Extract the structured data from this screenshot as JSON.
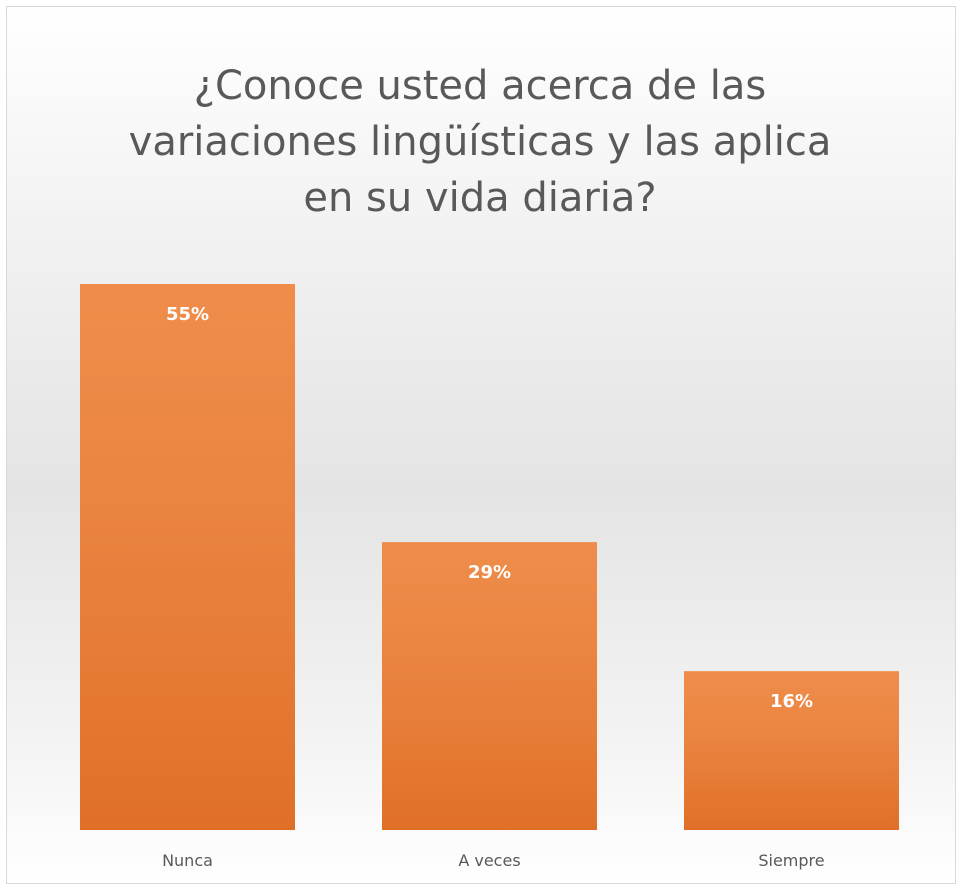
{
  "chart_data": {
    "type": "bar",
    "title": "¿Conoce usted acerca de las variaciones lingüísticas y las aplica en su vida diaria?",
    "categories": [
      "Nunca",
      "A veces",
      "Siempre"
    ],
    "values": [
      55,
      29,
      16
    ],
    "value_labels": [
      "55%",
      "29%",
      "16%"
    ],
    "color": "#ed7d31"
  }
}
